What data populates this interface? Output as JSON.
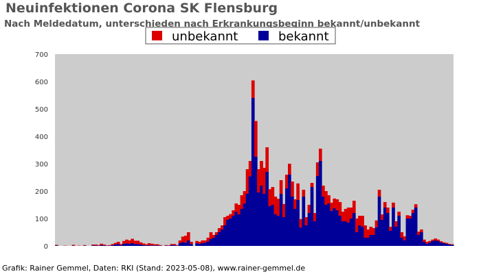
{
  "chart_data": {
    "type": "bar",
    "stacked": true,
    "title": "Neuinfektionen Corona SK Flensburg",
    "subtitle": "Nach Meldedatum, unterschieden nach Erkrankungsbeginn bekannt/unbekannt",
    "credit": "Grafik: Rainer Gemmel, Daten: RKI (Stand: 2023-05-08), www.rainer-gemmel.de",
    "xlabel": "",
    "ylabel": "",
    "ylim": [
      0,
      700
    ],
    "yticks": [
      0,
      100,
      200,
      300,
      400,
      500,
      600,
      700
    ],
    "grid": false,
    "legend_position": "top-center",
    "plot_background": "#cccccc",
    "series": [
      {
        "name": "unbekannt",
        "color": "#dd0000",
        "values": [
          2,
          0,
          0,
          1,
          0,
          0,
          3,
          0,
          1,
          0,
          2,
          0,
          0,
          3,
          3,
          2,
          5,
          3,
          1,
          2,
          4,
          6,
          8,
          4,
          10,
          14,
          12,
          16,
          12,
          12,
          8,
          6,
          4,
          7,
          6,
          4,
          4,
          2,
          0,
          2,
          1,
          4,
          4,
          2,
          10,
          20,
          25,
          30,
          8,
          0,
          8,
          7,
          10,
          8,
          14,
          25,
          10,
          10,
          15,
          15,
          30,
          15,
          16,
          20,
          30,
          35,
          50,
          45,
          90,
          56,
          64,
          130,
          85,
          90,
          95,
          90,
          62,
          65,
          64,
          62,
          50,
          48,
          50,
          40,
          55,
          35,
          60,
          30,
          25,
          30,
          30,
          15,
          30,
          50,
          45,
          40,
          50,
          30,
          30,
          35,
          40,
          50,
          35,
          45,
          55,
          40,
          45,
          50,
          35,
          40,
          45,
          30,
          30,
          25,
          25,
          25,
          20,
          20,
          20,
          15,
          18,
          20,
          15,
          20,
          15,
          12,
          10,
          12,
          12,
          12,
          10,
          8,
          7,
          6,
          5,
          7,
          5,
          4,
          3,
          3,
          2,
          2
        ]
      },
      {
        "name": "bekannt",
        "color": "#000099",
        "values": [
          2,
          0,
          0,
          0,
          0,
          0,
          1,
          0,
          0,
          0,
          1,
          0,
          0,
          2,
          2,
          1,
          3,
          2,
          1,
          1,
          3,
          5,
          7,
          3,
          8,
          9,
          8,
          10,
          7,
          7,
          5,
          3,
          2,
          3,
          2,
          2,
          2,
          1,
          0,
          1,
          1,
          3,
          3,
          1,
          10,
          14,
          12,
          20,
          7,
          0,
          10,
          8,
          10,
          12,
          16,
          25,
          30,
          40,
          50,
          60,
          75,
          95,
          100,
          110,
          125,
          115,
          135,
          155,
          190,
          254,
          540,
          326,
          195,
          220,
          190,
          270,
          145,
          150,
          116,
          110,
          190,
          105,
          210,
          260,
          180,
          135,
          168,
          68,
          180,
          75,
          120,
          215,
          90,
          255,
          310,
          180,
          150,
          155,
          128,
          138,
          130,
          110,
          90,
          90,
          85,
          100,
          120,
          50,
          75,
          70,
          30,
          30,
          40,
          40,
          68,
          180,
          95,
          140,
          120,
          55,
          140,
          70,
          110,
          30,
          20,
          100,
          100,
          120,
          140,
          40,
          50,
          15,
          8,
          12,
          18,
          20,
          18,
          13,
          10,
          8,
          5,
          4
        ]
      }
    ]
  }
}
